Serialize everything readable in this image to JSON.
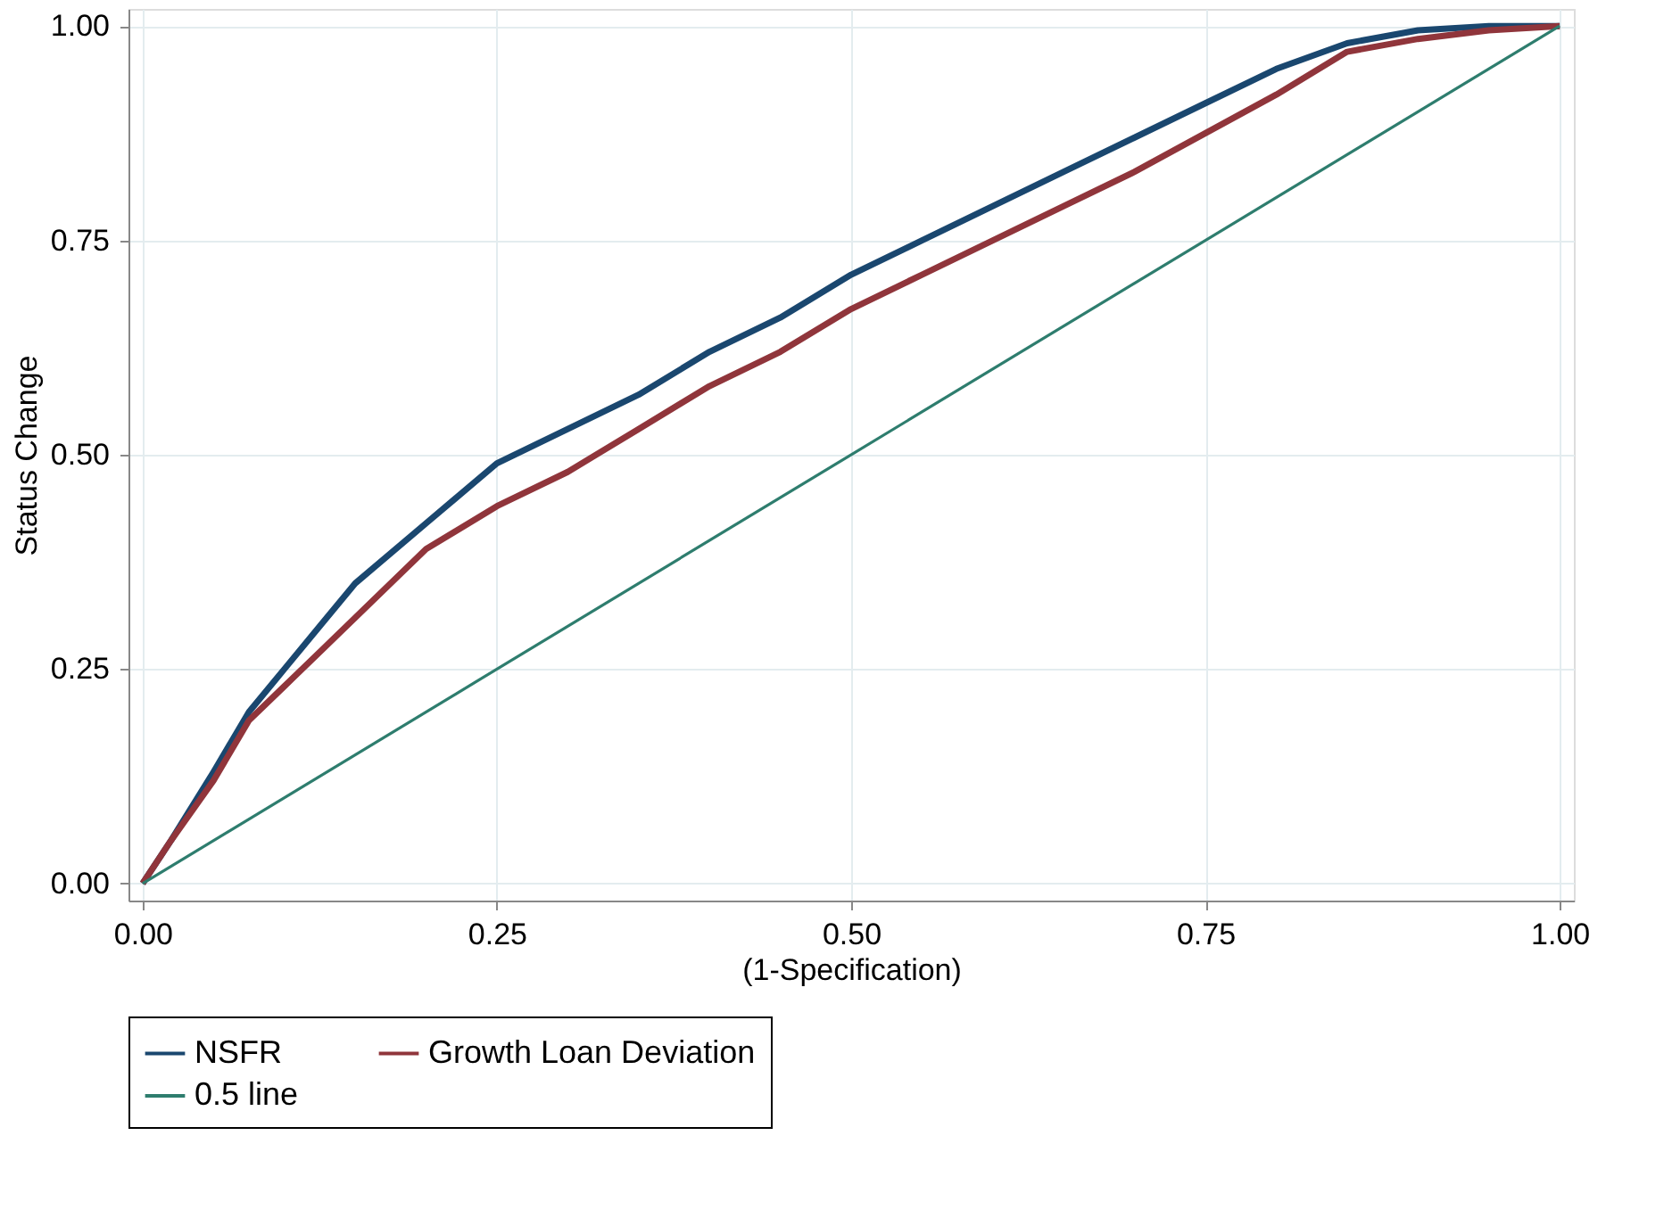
{
  "chart_data": {
    "type": "line",
    "xlabel": "(1-Specification)",
    "ylabel": "Status Change",
    "xlim": [
      -0.01,
      1.01
    ],
    "ylim": [
      -0.02,
      1.02
    ],
    "xticks": [
      {
        "value": 0,
        "label": "0.00"
      },
      {
        "value": 0.25,
        "label": "0.25"
      },
      {
        "value": 0.5,
        "label": "0.50"
      },
      {
        "value": 0.75,
        "label": "0.75"
      },
      {
        "value": 1,
        "label": "1.00"
      }
    ],
    "yticks": [
      {
        "value": 0,
        "label": "0.00"
      },
      {
        "value": 0.25,
        "label": "0.25"
      },
      {
        "value": 0.5,
        "label": "0.50"
      },
      {
        "value": 0.75,
        "label": "0.75"
      },
      {
        "value": 1,
        "label": "1.00"
      }
    ],
    "grid": true,
    "legend": "bottom",
    "marker": "none",
    "line_style": "solid",
    "series": [
      {
        "name": "NSFR",
        "color": "#1a476f",
        "x": [
          0,
          0.02,
          0.05,
          0.075,
          0.1,
          0.125,
          0.15,
          0.2,
          0.25,
          0.3,
          0.35,
          0.4,
          0.45,
          0.5,
          0.55,
          0.6,
          0.65,
          0.7,
          0.75,
          0.8,
          0.85,
          0.9,
          0.95,
          1
        ],
        "values": [
          0,
          0.05,
          0.13,
          0.2,
          0.25,
          0.3,
          0.35,
          0.42,
          0.49,
          0.53,
          0.57,
          0.62,
          0.66,
          0.71,
          0.75,
          0.79,
          0.83,
          0.87,
          0.91,
          0.95,
          0.98,
          0.995,
          1.0,
          1.0
        ]
      },
      {
        "name": "Growth Loan Deviation",
        "color": "#90353b",
        "x": [
          0,
          0.02,
          0.05,
          0.075,
          0.1,
          0.125,
          0.15,
          0.2,
          0.25,
          0.3,
          0.35,
          0.4,
          0.45,
          0.5,
          0.55,
          0.6,
          0.65,
          0.7,
          0.75,
          0.8,
          0.85,
          0.9,
          0.95,
          1
        ],
        "values": [
          0,
          0.05,
          0.12,
          0.19,
          0.23,
          0.27,
          0.31,
          0.39,
          0.44,
          0.48,
          0.53,
          0.58,
          0.62,
          0.67,
          0.71,
          0.75,
          0.79,
          0.83,
          0.875,
          0.92,
          0.97,
          0.985,
          0.995,
          1.0
        ]
      },
      {
        "name": "0.5 line",
        "color": "#2e7d6e",
        "x": [
          0,
          1
        ],
        "values": [
          0,
          1
        ]
      }
    ]
  }
}
